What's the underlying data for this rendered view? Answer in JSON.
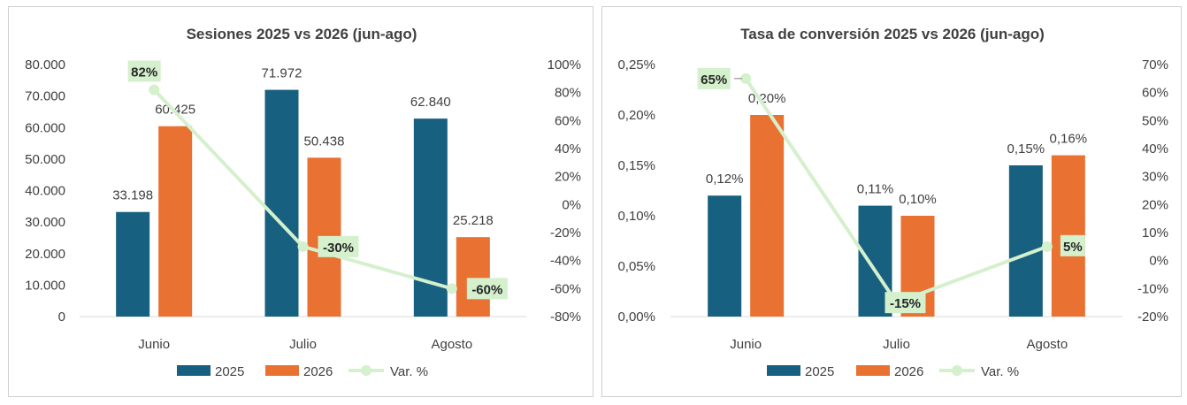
{
  "colors": {
    "series_2025": "#17607f",
    "series_2026": "#e97132",
    "variation": "#d4f0cc",
    "variation_label_bg": "#d4f0cc",
    "axis_text": "#404040",
    "axis_line": "#d9d9d9"
  },
  "chart_data": [
    {
      "type": "bar",
      "combo": "clustered-bar + line (secondary axis)",
      "title": "Sesiones 2025 vs 2026 (jun-ago)",
      "categories": [
        "Junio",
        "Julio",
        "Agosto"
      ],
      "series": [
        {
          "name": "2025",
          "values": [
            33198,
            71972,
            62840
          ],
          "labels": [
            "33.198",
            "71.972",
            "62.840"
          ],
          "axis": "primary"
        },
        {
          "name": "2026",
          "values": [
            60425,
            50438,
            25218
          ],
          "labels": [
            "60.425",
            "50.438",
            "25.218"
          ],
          "axis": "primary"
        },
        {
          "name": "Var. %",
          "type": "line",
          "values": [
            82,
            -30,
            -60
          ],
          "labels": [
            "82%",
            "-30%",
            "-60%"
          ],
          "axis": "secondary"
        }
      ],
      "y_primary": {
        "ylim": [
          0,
          80000
        ],
        "ticks": [
          "0",
          "10.000",
          "20.000",
          "30.000",
          "40.000",
          "50.000",
          "60.000",
          "70.000",
          "80.000"
        ]
      },
      "y_secondary": {
        "ylim": [
          -80,
          100
        ],
        "ticks": [
          "-80%",
          "-60%",
          "-40%",
          "-20%",
          "0%",
          "20%",
          "40%",
          "60%",
          "80%",
          "100%"
        ]
      },
      "grid": false,
      "legend": "bottom"
    },
    {
      "type": "bar",
      "combo": "clustered-bar + line (secondary axis)",
      "title": "Tasa de conversión 2025 vs 2026 (jun-ago)",
      "categories": [
        "Junio",
        "Julio",
        "Agosto"
      ],
      "series": [
        {
          "name": "2025",
          "values": [
            0.12,
            0.11,
            0.15
          ],
          "labels": [
            "0,12%",
            "0,11%",
            "0,15%"
          ],
          "axis": "primary"
        },
        {
          "name": "2026",
          "values": [
            0.2,
            0.1,
            0.16
          ],
          "labels": [
            "0,20%",
            "0,10%",
            "0,16%"
          ],
          "axis": "primary"
        },
        {
          "name": "Var. %",
          "type": "line",
          "values": [
            65,
            -15,
            5
          ],
          "labels": [
            "65%",
            "-15%",
            "5%"
          ],
          "axis": "secondary"
        }
      ],
      "y_primary": {
        "ylim": [
          0,
          0.25
        ],
        "ticks": [
          "0,00%",
          "0,05%",
          "0,10%",
          "0,15%",
          "0,20%",
          "0,25%"
        ]
      },
      "y_secondary": {
        "ylim": [
          -20,
          70
        ],
        "ticks": [
          "-20%",
          "-10%",
          "0%",
          "10%",
          "20%",
          "30%",
          "40%",
          "50%",
          "60%",
          "70%"
        ]
      },
      "grid": false,
      "legend": "bottom"
    }
  ]
}
